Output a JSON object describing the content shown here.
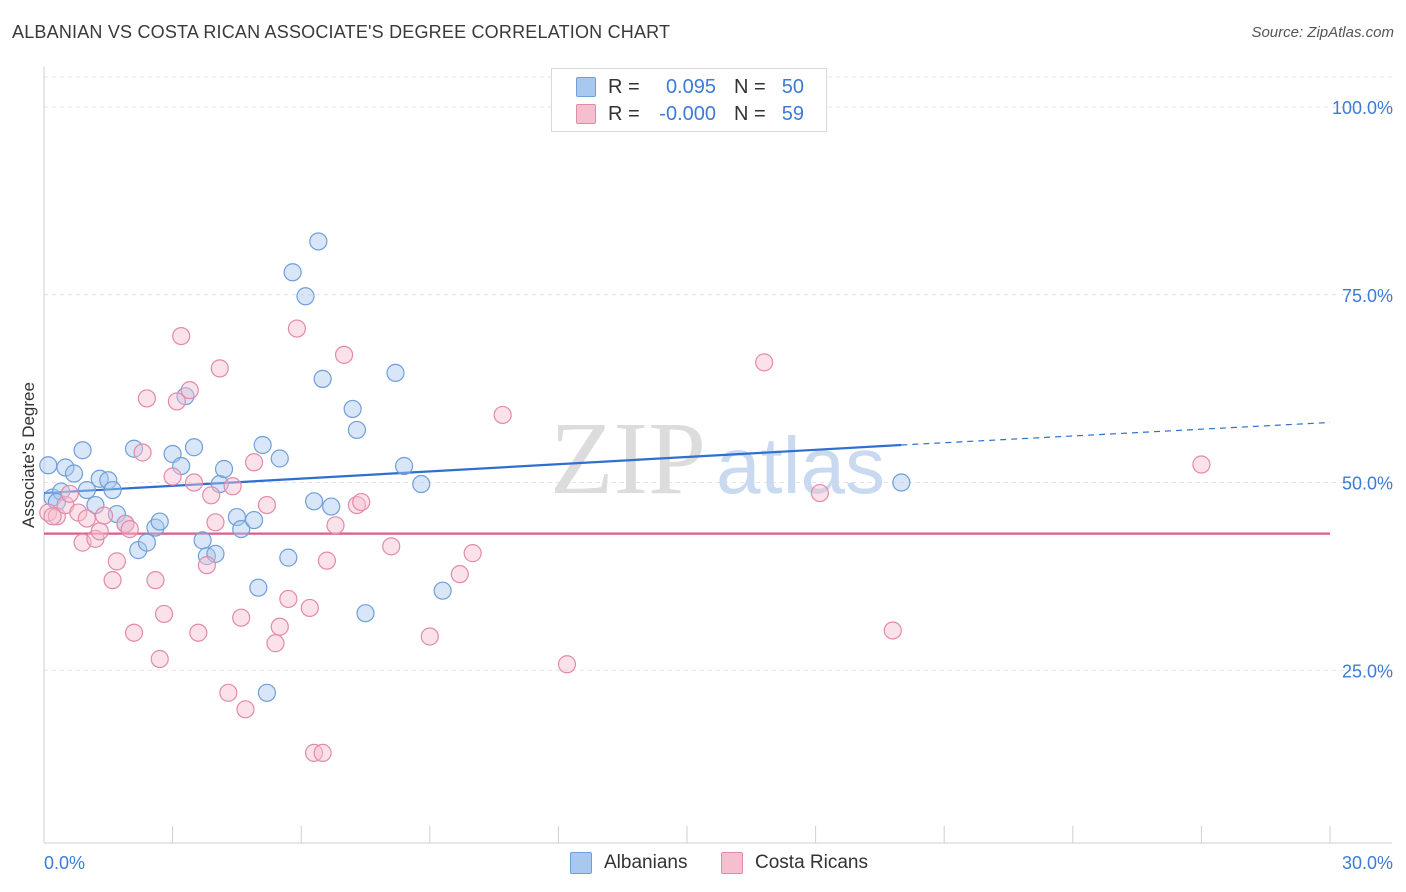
{
  "title": "ALBANIAN VS COSTA RICAN ASSOCIATE'S DEGREE CORRELATION CHART",
  "source": "Source: ZipAtlas.com",
  "watermark": {
    "part1": "ZIP",
    "part2": "atlas"
  },
  "legend": {
    "rows": [
      {
        "r_label": "R =",
        "r_value": "0.095",
        "n_label": "N =",
        "n_value": "50",
        "color": "#a9c8f0",
        "border": "#6f9fd8"
      },
      {
        "r_label": "R =",
        "r_value": "-0.000",
        "n_label": "N =",
        "n_value": "59",
        "color": "#f6bfd0",
        "border": "#e38aa8"
      }
    ]
  },
  "bottom_legend": [
    {
      "label": "Albanians",
      "color": "#a9c8f0",
      "border": "#6f9fd8"
    },
    {
      "label": "Costa Ricans",
      "color": "#f6bfd0",
      "border": "#e38aa8"
    }
  ],
  "chart_data": {
    "type": "scatter",
    "title": "ALBANIAN VS COSTA RICAN ASSOCIATE'S DEGREE CORRELATION CHART",
    "xlabel": "",
    "ylabel": "Associate's Degree",
    "xlim": [
      0,
      30
    ],
    "ylim": [
      2,
      104
    ],
    "x_tick_labels": [
      "0.0%",
      "30.0%"
    ],
    "y_tick_labels": [
      "100.0%",
      "75.0%",
      "50.0%",
      "25.0%"
    ],
    "y_ticks": [
      100,
      75,
      50,
      25
    ],
    "grid": true,
    "series": [
      {
        "name": "Albanians",
        "color": "#6f9fd8",
        "fill": "#a9c8f0",
        "trend": {
          "x": [
            0,
            20
          ],
          "y": [
            48.6,
            55.0
          ],
          "dashed_to_x": 30,
          "dashed_y": 58.0,
          "color": "#2f6fd0"
        },
        "points": [
          [
            0.2,
            48.0
          ],
          [
            0.5,
            52.0
          ],
          [
            0.4,
            48.8
          ],
          [
            0.7,
            51.2
          ],
          [
            0.9,
            54.3
          ],
          [
            1.0,
            49.0
          ],
          [
            1.2,
            47.0
          ],
          [
            1.3,
            50.5
          ],
          [
            1.5,
            50.3
          ],
          [
            1.6,
            49.0
          ],
          [
            1.7,
            45.8
          ],
          [
            1.9,
            44.5
          ],
          [
            2.1,
            54.5
          ],
          [
            2.2,
            41.0
          ],
          [
            2.4,
            42.0
          ],
          [
            2.6,
            44.0
          ],
          [
            2.7,
            44.8
          ],
          [
            3.0,
            53.8
          ],
          [
            3.2,
            52.2
          ],
          [
            3.3,
            61.5
          ],
          [
            3.5,
            54.7
          ],
          [
            3.7,
            42.3
          ],
          [
            3.8,
            40.2
          ],
          [
            4.0,
            40.5
          ],
          [
            4.1,
            49.8
          ],
          [
            4.2,
            51.8
          ],
          [
            4.5,
            45.4
          ],
          [
            4.6,
            43.8
          ],
          [
            4.9,
            45.0
          ],
          [
            5.0,
            36.0
          ],
          [
            5.1,
            55.0
          ],
          [
            5.2,
            22.0
          ],
          [
            5.5,
            53.2
          ],
          [
            5.7,
            40.0
          ],
          [
            5.8,
            78.0
          ],
          [
            6.1,
            74.8
          ],
          [
            6.3,
            47.5
          ],
          [
            6.4,
            82.1
          ],
          [
            6.5,
            63.8
          ],
          [
            6.7,
            46.8
          ],
          [
            7.2,
            59.8
          ],
          [
            7.3,
            57.0
          ],
          [
            7.5,
            32.6
          ],
          [
            8.2,
            64.6
          ],
          [
            8.4,
            52.2
          ],
          [
            8.8,
            49.8
          ],
          [
            9.3,
            35.6
          ],
          [
            20.0,
            50.0
          ],
          [
            0.1,
            52.3
          ],
          [
            0.3,
            47.4
          ]
        ]
      },
      {
        "name": "Costa Ricans",
        "color": "#e38aa8",
        "fill": "#f6bfd0",
        "trend": {
          "x": [
            0,
            30
          ],
          "y": [
            43.2,
            43.2
          ],
          "color": "#e05a8a"
        },
        "points": [
          [
            0.1,
            46.0
          ],
          [
            0.3,
            45.5
          ],
          [
            0.5,
            47.0
          ],
          [
            0.6,
            48.5
          ],
          [
            0.8,
            46.0
          ],
          [
            0.9,
            42.0
          ],
          [
            1.0,
            45.2
          ],
          [
            1.2,
            42.5
          ],
          [
            1.3,
            43.5
          ],
          [
            1.4,
            45.6
          ],
          [
            1.6,
            37.0
          ],
          [
            1.7,
            39.5
          ],
          [
            1.9,
            44.5
          ],
          [
            2.0,
            43.8
          ],
          [
            2.1,
            30.0
          ],
          [
            2.3,
            54.0
          ],
          [
            2.4,
            61.2
          ],
          [
            2.6,
            37.0
          ],
          [
            2.7,
            26.5
          ],
          [
            2.8,
            32.5
          ],
          [
            3.0,
            50.8
          ],
          [
            3.1,
            60.8
          ],
          [
            3.2,
            69.5
          ],
          [
            3.4,
            62.3
          ],
          [
            3.5,
            50.0
          ],
          [
            3.6,
            30.0
          ],
          [
            3.8,
            39.0
          ],
          [
            3.9,
            48.3
          ],
          [
            4.0,
            44.7
          ],
          [
            4.1,
            65.2
          ],
          [
            4.3,
            22.0
          ],
          [
            4.4,
            49.5
          ],
          [
            4.6,
            32.0
          ],
          [
            4.7,
            19.8
          ],
          [
            4.9,
            52.7
          ],
          [
            5.2,
            47.0
          ],
          [
            5.4,
            28.6
          ],
          [
            5.5,
            30.8
          ],
          [
            5.7,
            34.5
          ],
          [
            5.9,
            70.5
          ],
          [
            6.2,
            33.3
          ],
          [
            6.3,
            14.0
          ],
          [
            6.5,
            14.0
          ],
          [
            6.6,
            39.6
          ],
          [
            6.8,
            44.3
          ],
          [
            7.0,
            67.0
          ],
          [
            7.3,
            47.0
          ],
          [
            7.4,
            47.4
          ],
          [
            8.1,
            41.5
          ],
          [
            9.0,
            29.5
          ],
          [
            9.7,
            37.8
          ],
          [
            10.0,
            40.6
          ],
          [
            10.7,
            59.0
          ],
          [
            12.2,
            25.8
          ],
          [
            16.8,
            66.0
          ],
          [
            18.1,
            48.6
          ],
          [
            19.8,
            30.3
          ],
          [
            27.0,
            52.4
          ],
          [
            0.2,
            45.5
          ]
        ]
      }
    ]
  }
}
